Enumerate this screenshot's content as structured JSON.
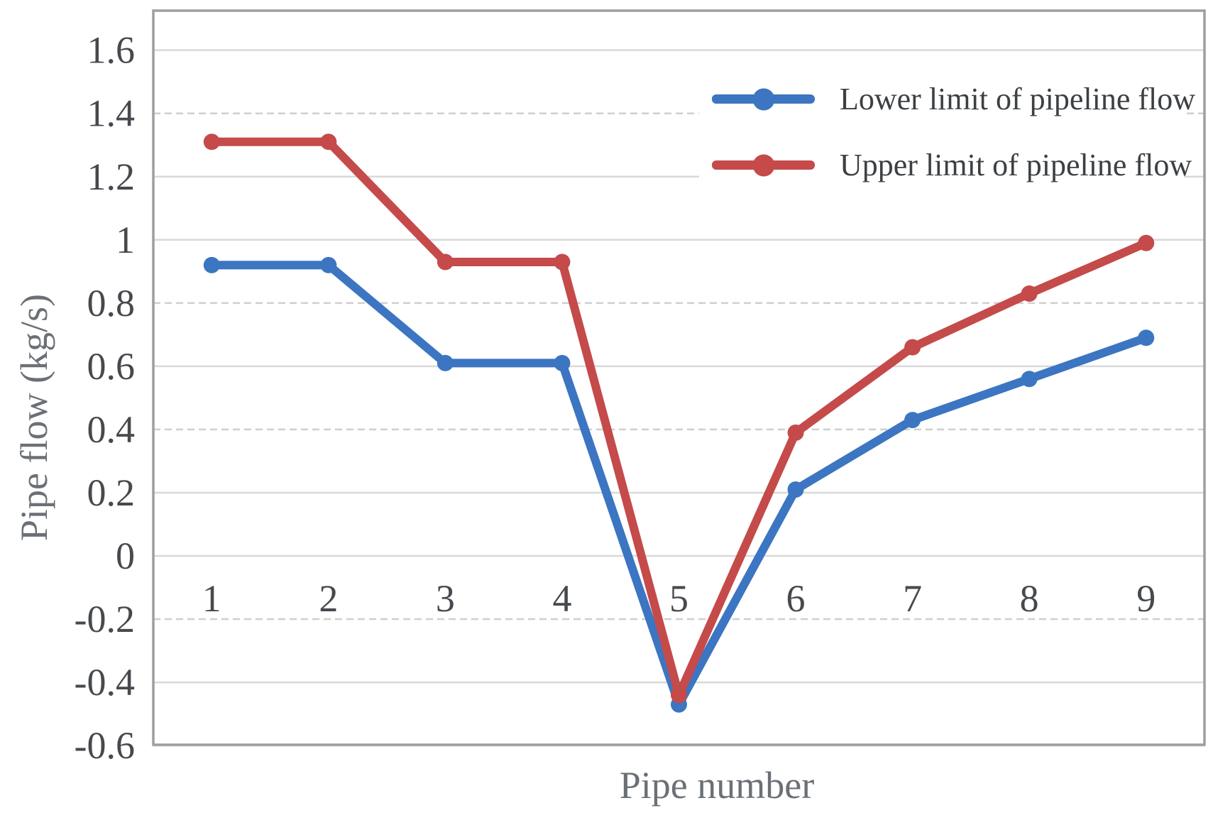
{
  "chart_data": {
    "type": "line",
    "title": "",
    "xlabel": "Pipe number",
    "ylabel": "Pipe flow (kg/s)",
    "categories": [
      "1",
      "2",
      "3",
      "4",
      "5",
      "6",
      "7",
      "8",
      "9"
    ],
    "series": [
      {
        "name": "Lower limit of pipeline flow",
        "color": "#3c75c1",
        "values": [
          0.92,
          0.92,
          0.61,
          0.61,
          -0.47,
          0.21,
          0.43,
          0.56,
          0.69
        ]
      },
      {
        "name": "Upper limit of pipeline flow",
        "color": "#c54a4a",
        "values": [
          1.31,
          1.31,
          0.93,
          0.93,
          -0.44,
          0.39,
          0.66,
          0.83,
          0.99
        ]
      }
    ],
    "ylim": [
      -0.6,
      1.73
    ],
    "yticks": [
      {
        "label": "1.6",
        "value": 1.6,
        "dashed": false
      },
      {
        "label": "1.4",
        "value": 1.4,
        "dashed": true
      },
      {
        "label": "1.2",
        "value": 1.2,
        "dashed": false
      },
      {
        "label": "1",
        "value": 1.0,
        "dashed": false
      },
      {
        "label": "0.8",
        "value": 0.8,
        "dashed": true
      },
      {
        "label": "0.6",
        "value": 0.6,
        "dashed": false
      },
      {
        "label": "0.4",
        "value": 0.4,
        "dashed": true
      },
      {
        "label": "0.2",
        "value": 0.2,
        "dashed": false
      },
      {
        "label": "0",
        "value": 0.0,
        "dashed": false
      },
      {
        "label": "-0.2",
        "value": -0.2,
        "dashed": true
      },
      {
        "label": "-0.4",
        "value": -0.4,
        "dashed": false
      },
      {
        "label": "-0.6",
        "value": -0.6,
        "dashed": false
      }
    ],
    "grid": true,
    "legend_position": "top-right-inside",
    "colors": {
      "grid": "#d9d9d9",
      "border": "#9e9e9e",
      "tick_text": "#46494d",
      "axis_title_text": "#6b7077",
      "legend_text": "#3c4043",
      "background": "#ffffff"
    }
  }
}
